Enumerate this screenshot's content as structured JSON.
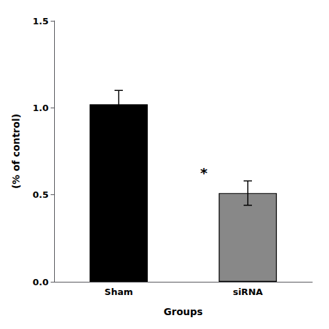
{
  "chart_data": {
    "type": "bar",
    "categories": [
      "Sham",
      "siRNA"
    ],
    "values": [
      1.02,
      0.51
    ],
    "errors": [
      0.08,
      0.07
    ],
    "colors": [
      "#000000",
      "#888888"
    ],
    "xlabel": "Groups",
    "ylabel": "(% of control)",
    "ylim": [
      0.0,
      1.5
    ],
    "yticks": [
      {
        "value": 0.0,
        "label": "0.0"
      },
      0.5,
      {
        "value": 1.0,
        "label": "1.0"
      },
      1.5
    ],
    "annotations": [
      {
        "text": "*",
        "category": "siRNA"
      }
    ],
    "grid": false
  }
}
